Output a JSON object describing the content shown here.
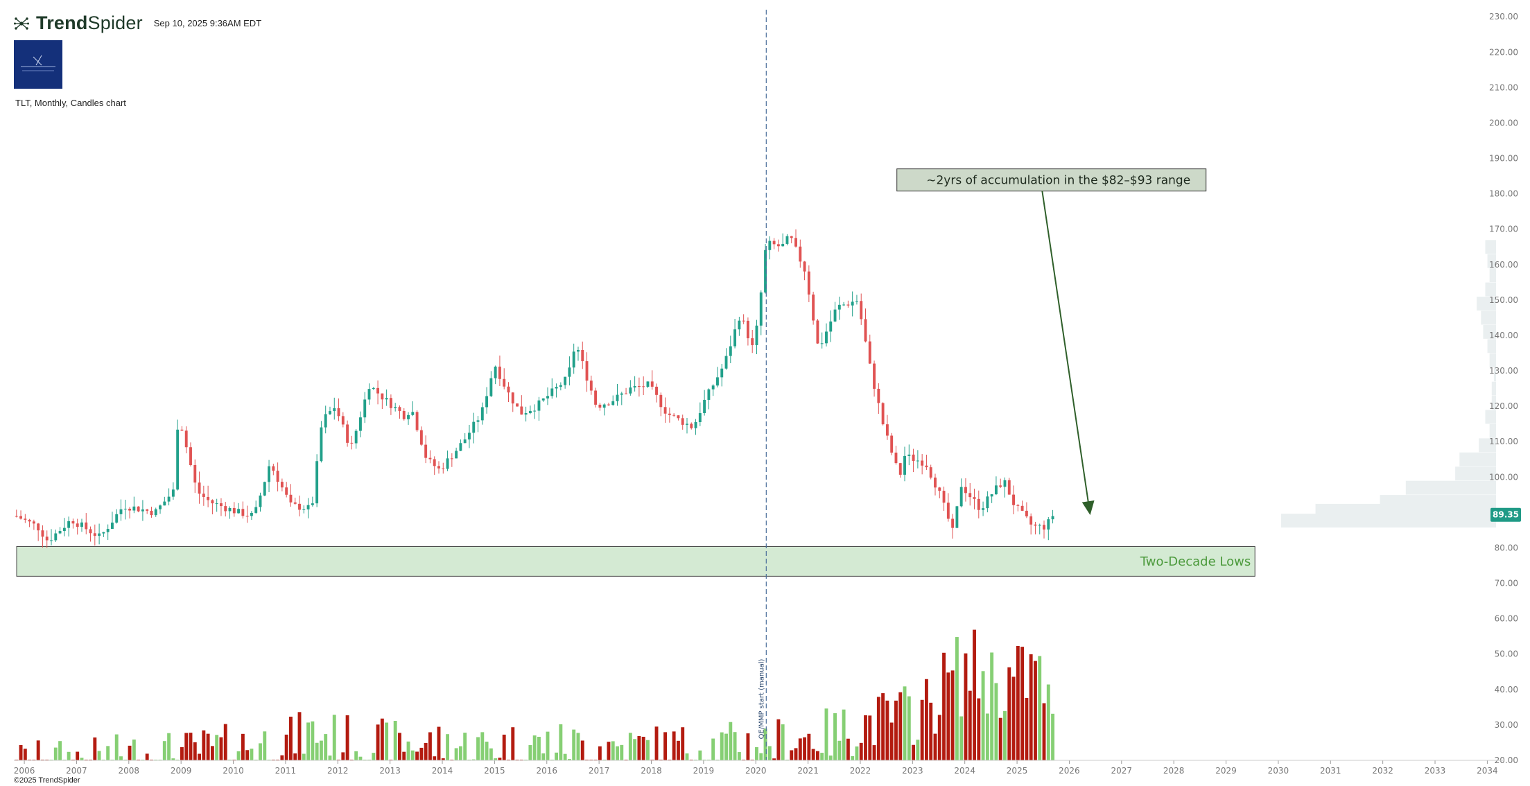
{
  "header": {
    "brand_prefix": "Trend",
    "brand_suffix": "Spider",
    "timestamp": "Sep 10, 2025 9:36AM EDT"
  },
  "subtitle": "TLT, Monthly, Candles chart",
  "copyright": "©2025 TrendSpider",
  "colors": {
    "up": "#21a08a",
    "down": "#e05252",
    "vol_up": "#86cf74",
    "vol_down": "#b31b10",
    "zone_fill": "#d4ead3",
    "annotation_fill": "#cdd9c9",
    "arrow": "#2f5f2a",
    "profile": "#eaeff0",
    "price_tag": "#1f9a86",
    "logo": "#14307a"
  },
  "chart_data": {
    "type": "candlestick",
    "symbol": "TLT",
    "timeframe": "Monthly",
    "x_axis": {
      "ticks": [
        "2006",
        "2007",
        "2008",
        "2009",
        "2010",
        "2011",
        "2012",
        "2013",
        "2014",
        "2015",
        "2016",
        "2017",
        "2018",
        "2019",
        "2020",
        "2021",
        "2022",
        "2023",
        "2024",
        "2025",
        "2026",
        "2027",
        "2028",
        "2029",
        "2030",
        "2031",
        "2032",
        "2033",
        "2034"
      ],
      "range": [
        2005.8,
        2034.3
      ]
    },
    "y_axis": {
      "ticks": [
        "20.00",
        "30.00",
        "40.00",
        "50.00",
        "60.00",
        "70.00",
        "80.00",
        "90.00",
        "100.00",
        "110.00",
        "120.00",
        "130.00",
        "140.00",
        "150.00",
        "160.00",
        "170.00",
        "180.00",
        "190.00",
        "200.00",
        "210.00",
        "220.00",
        "230.00"
      ],
      "range": [
        20,
        232
      ]
    },
    "last_price": "89.35",
    "price_keypoints": [
      [
        2005.85,
        89
      ],
      [
        2006.25,
        86
      ],
      [
        2006.45,
        82
      ],
      [
        2006.9,
        88
      ],
      [
        2007.45,
        83
      ],
      [
        2007.9,
        92
      ],
      [
        2008.5,
        90
      ],
      [
        2008.85,
        96
      ],
      [
        2008.95,
        118
      ],
      [
        2009.3,
        96
      ],
      [
        2009.55,
        93
      ],
      [
        2010.1,
        90
      ],
      [
        2010.4,
        89
      ],
      [
        2010.7,
        104
      ],
      [
        2011.1,
        92
      ],
      [
        2011.5,
        91
      ],
      [
        2011.7,
        116
      ],
      [
        2011.95,
        120
      ],
      [
        2012.25,
        108
      ],
      [
        2012.6,
        126
      ],
      [
        2012.9,
        122
      ],
      [
        2013.3,
        117
      ],
      [
        2013.4,
        120
      ],
      [
        2013.7,
        105
      ],
      [
        2013.95,
        102
      ],
      [
        2014.4,
        110
      ],
      [
        2014.75,
        118
      ],
      [
        2015.0,
        132
      ],
      [
        2015.25,
        124
      ],
      [
        2015.5,
        118
      ],
      [
        2015.8,
        120
      ],
      [
        2016.4,
        128
      ],
      [
        2016.55,
        138
      ],
      [
        2016.95,
        120
      ],
      [
        2017.3,
        122
      ],
      [
        2017.6,
        125
      ],
      [
        2017.95,
        126
      ],
      [
        2018.3,
        118
      ],
      [
        2018.8,
        114
      ],
      [
        2019.0,
        121
      ],
      [
        2019.4,
        132
      ],
      [
        2019.7,
        146
      ],
      [
        2019.95,
        136
      ],
      [
        2020.05,
        145
      ],
      [
        2020.2,
        166
      ],
      [
        2020.5,
        165
      ],
      [
        2020.65,
        168
      ],
      [
        2020.95,
        158
      ],
      [
        2021.2,
        136
      ],
      [
        2021.55,
        148
      ],
      [
        2021.95,
        150
      ],
      [
        2022.2,
        130
      ],
      [
        2022.45,
        114
      ],
      [
        2022.75,
        100
      ],
      [
        2022.85,
        106
      ],
      [
        2023.25,
        104
      ],
      [
        2023.5,
        96
      ],
      [
        2023.78,
        84
      ],
      [
        2023.92,
        98
      ],
      [
        2024.3,
        91
      ],
      [
        2024.55,
        96
      ],
      [
        2024.75,
        99
      ],
      [
        2024.95,
        92
      ],
      [
        2025.3,
        86
      ],
      [
        2025.55,
        86
      ],
      [
        2025.69,
        89.35
      ]
    ],
    "volume_axis_range": [
      20,
      230
    ],
    "volume_keypoints": [
      [
        2005.85,
        20.5
      ],
      [
        2007.4,
        21.5
      ],
      [
        2008.2,
        22.5
      ],
      [
        2009.0,
        23.0
      ],
      [
        2010.3,
        25.0
      ],
      [
        2011.0,
        26.0
      ],
      [
        2011.5,
        28.5
      ],
      [
        2012.5,
        25.5
      ],
      [
        2013.5,
        25.5
      ],
      [
        2014.5,
        24.5
      ],
      [
        2015.5,
        25.0
      ],
      [
        2016.5,
        25.0
      ],
      [
        2017.5,
        24.5
      ],
      [
        2018.5,
        24.5
      ],
      [
        2019.5,
        25.0
      ],
      [
        2020.0,
        25.5
      ],
      [
        2020.5,
        26.0
      ],
      [
        2021.0,
        27.5
      ],
      [
        2021.5,
        28.0
      ],
      [
        2022.0,
        31.0
      ],
      [
        2022.5,
        32.5
      ],
      [
        2022.95,
        34.0
      ],
      [
        2023.3,
        36.0
      ],
      [
        2023.7,
        44.0
      ],
      [
        2024.1,
        47.0
      ],
      [
        2024.5,
        44.0
      ],
      [
        2024.9,
        43.0
      ],
      [
        2025.3,
        46.0
      ],
      [
        2025.55,
        42.0
      ],
      [
        2025.69,
        28.0
      ]
    ],
    "zone": {
      "label": "Two-Decade Lows",
      "y_range": [
        72,
        80.4
      ],
      "x_range": [
        2005.8,
        2029.5
      ]
    },
    "vertical_line": {
      "x": 2020.2,
      "label": "QE/MMP start (manual)"
    },
    "annotation": {
      "text": "~2yrs of accumulation in the $82–$93 range",
      "anchor": [
        2022.7,
        180
      ],
      "arrow_to": [
        2026.4,
        88.5
      ]
    },
    "volume_profile_bins": [
      [
        87.7,
        100
      ],
      [
        90.5,
        84
      ],
      [
        93.0,
        54
      ],
      [
        97.0,
        42
      ],
      [
        101.0,
        19
      ],
      [
        105.0,
        17
      ],
      [
        109.0,
        8
      ],
      [
        113.0,
        3
      ],
      [
        117.0,
        5
      ],
      [
        121.0,
        2
      ],
      [
        125.0,
        2
      ],
      [
        129.0,
        1
      ],
      [
        133.0,
        3
      ],
      [
        137.0,
        4
      ],
      [
        141.0,
        6
      ],
      [
        145.0,
        7
      ],
      [
        149.0,
        9
      ],
      [
        153.0,
        5
      ],
      [
        157.0,
        3
      ],
      [
        161.0,
        4
      ],
      [
        165.0,
        5
      ]
    ]
  }
}
